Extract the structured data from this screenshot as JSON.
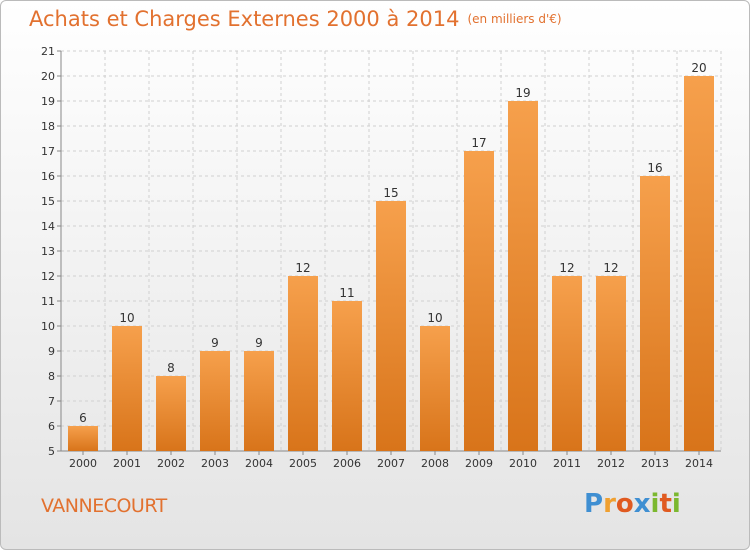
{
  "header": {
    "title": "Achats et Charges Externes 2000 à 2014",
    "unit": "(en milliers d'€)"
  },
  "commune": "VANNECOURT",
  "logo": {
    "text": "Proxiti",
    "letters": [
      {
        "ch": "P",
        "color": "#3f8fd2"
      },
      {
        "ch": "r",
        "color": "#f0a030"
      },
      {
        "ch": "o",
        "color": "#e05a20"
      },
      {
        "ch": "x",
        "color": "#3f8fd2"
      },
      {
        "ch": "i",
        "color": "#7cb82f"
      },
      {
        "ch": "t",
        "color": "#e05a20"
      },
      {
        "ch": "i",
        "color": "#7cb82f"
      }
    ]
  },
  "chart_data": {
    "type": "bar",
    "title": "Achats et Charges Externes 2000 à 2014",
    "subtitle": "(en milliers d'€)",
    "categories": [
      "2000",
      "2001",
      "2002",
      "2003",
      "2004",
      "2005",
      "2006",
      "2007",
      "2008",
      "2009",
      "2010",
      "2011",
      "2012",
      "2013",
      "2014"
    ],
    "values": [
      6,
      10,
      8,
      9,
      9,
      12,
      11,
      15,
      10,
      17,
      19,
      12,
      12,
      16,
      20
    ],
    "ylim": [
      5,
      21
    ],
    "yticks": [
      5,
      6,
      7,
      8,
      9,
      10,
      11,
      12,
      13,
      14,
      15,
      16,
      17,
      18,
      19,
      20,
      21
    ],
    "grid": true,
    "bar_color_top": "#f6a04c",
    "bar_color_bottom": "#d8741a",
    "legend": "none"
  }
}
